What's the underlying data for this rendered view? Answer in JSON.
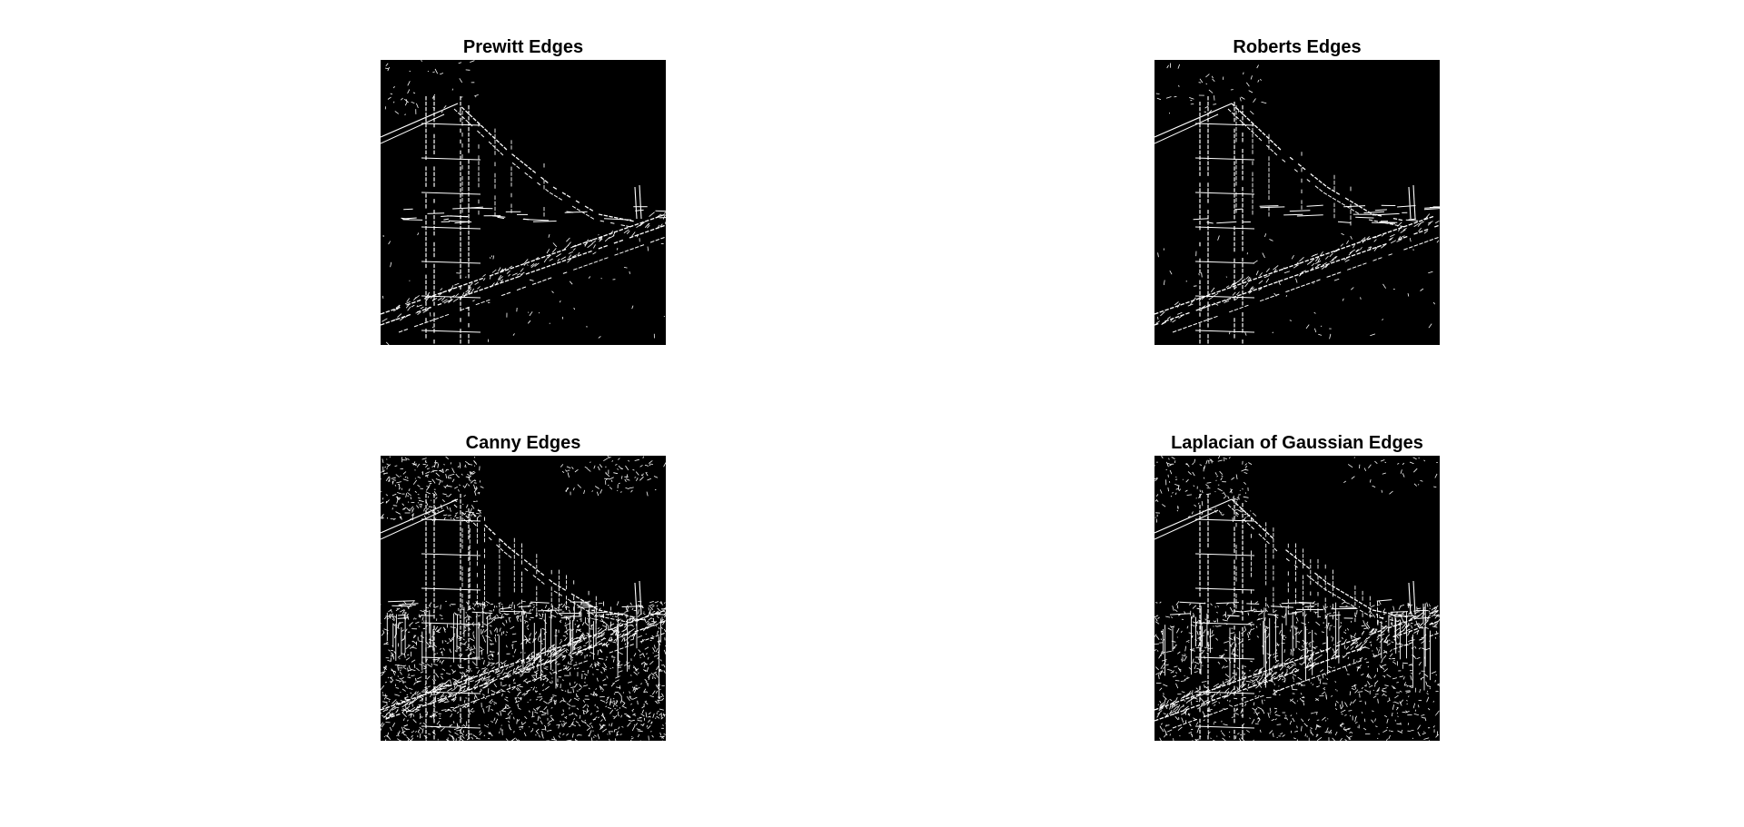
{
  "figure": {
    "background": "#ffffff",
    "panels": [
      {
        "id": "prewitt",
        "title": "Prewitt Edges",
        "method": "prewitt",
        "density": 0.35
      },
      {
        "id": "roberts",
        "title": "Roberts Edges",
        "method": "roberts",
        "density": 0.3
      },
      {
        "id": "canny",
        "title": "Canny Edges",
        "method": "canny",
        "density": 1.0
      },
      {
        "id": "log",
        "title": "Laplacian of Gaussian Edges",
        "method": "log",
        "density": 0.75
      }
    ]
  },
  "colors": {
    "image_background": "#000000",
    "edge": "#ffffff",
    "title": "#000000"
  }
}
